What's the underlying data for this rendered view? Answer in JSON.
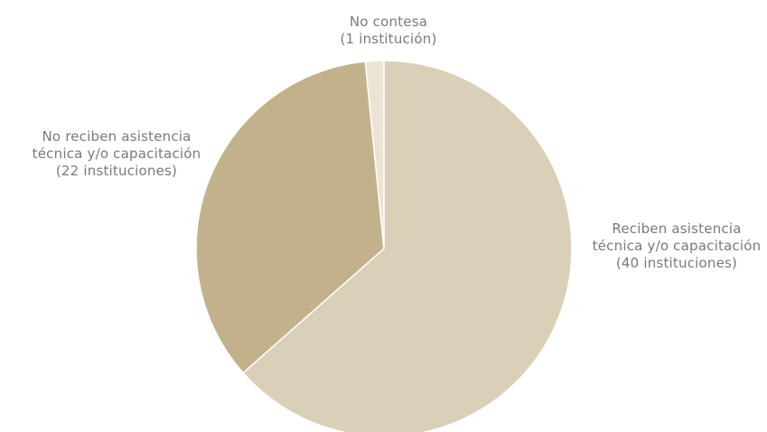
{
  "chart_data": {
    "type": "pie",
    "title": "",
    "start_angle_deg": 0,
    "direction": "clockwise",
    "legend": "none",
    "slices": [
      {
        "label_lines": [
          "Reciben asistencia",
          "técnica y/o capacitación",
          "(40 instituciones)"
        ],
        "value": 40,
        "color": "#dacfb7"
      },
      {
        "label_lines": [
          "No reciben asistencia",
          "técnica y/o capacitación",
          "(22 instituciones)"
        ],
        "value": 22,
        "color": "#c2b18a"
      },
      {
        "label_lines": [
          "No contesa",
          "(1 institución)"
        ],
        "value": 1,
        "color": "#ebe4d5"
      }
    ]
  }
}
